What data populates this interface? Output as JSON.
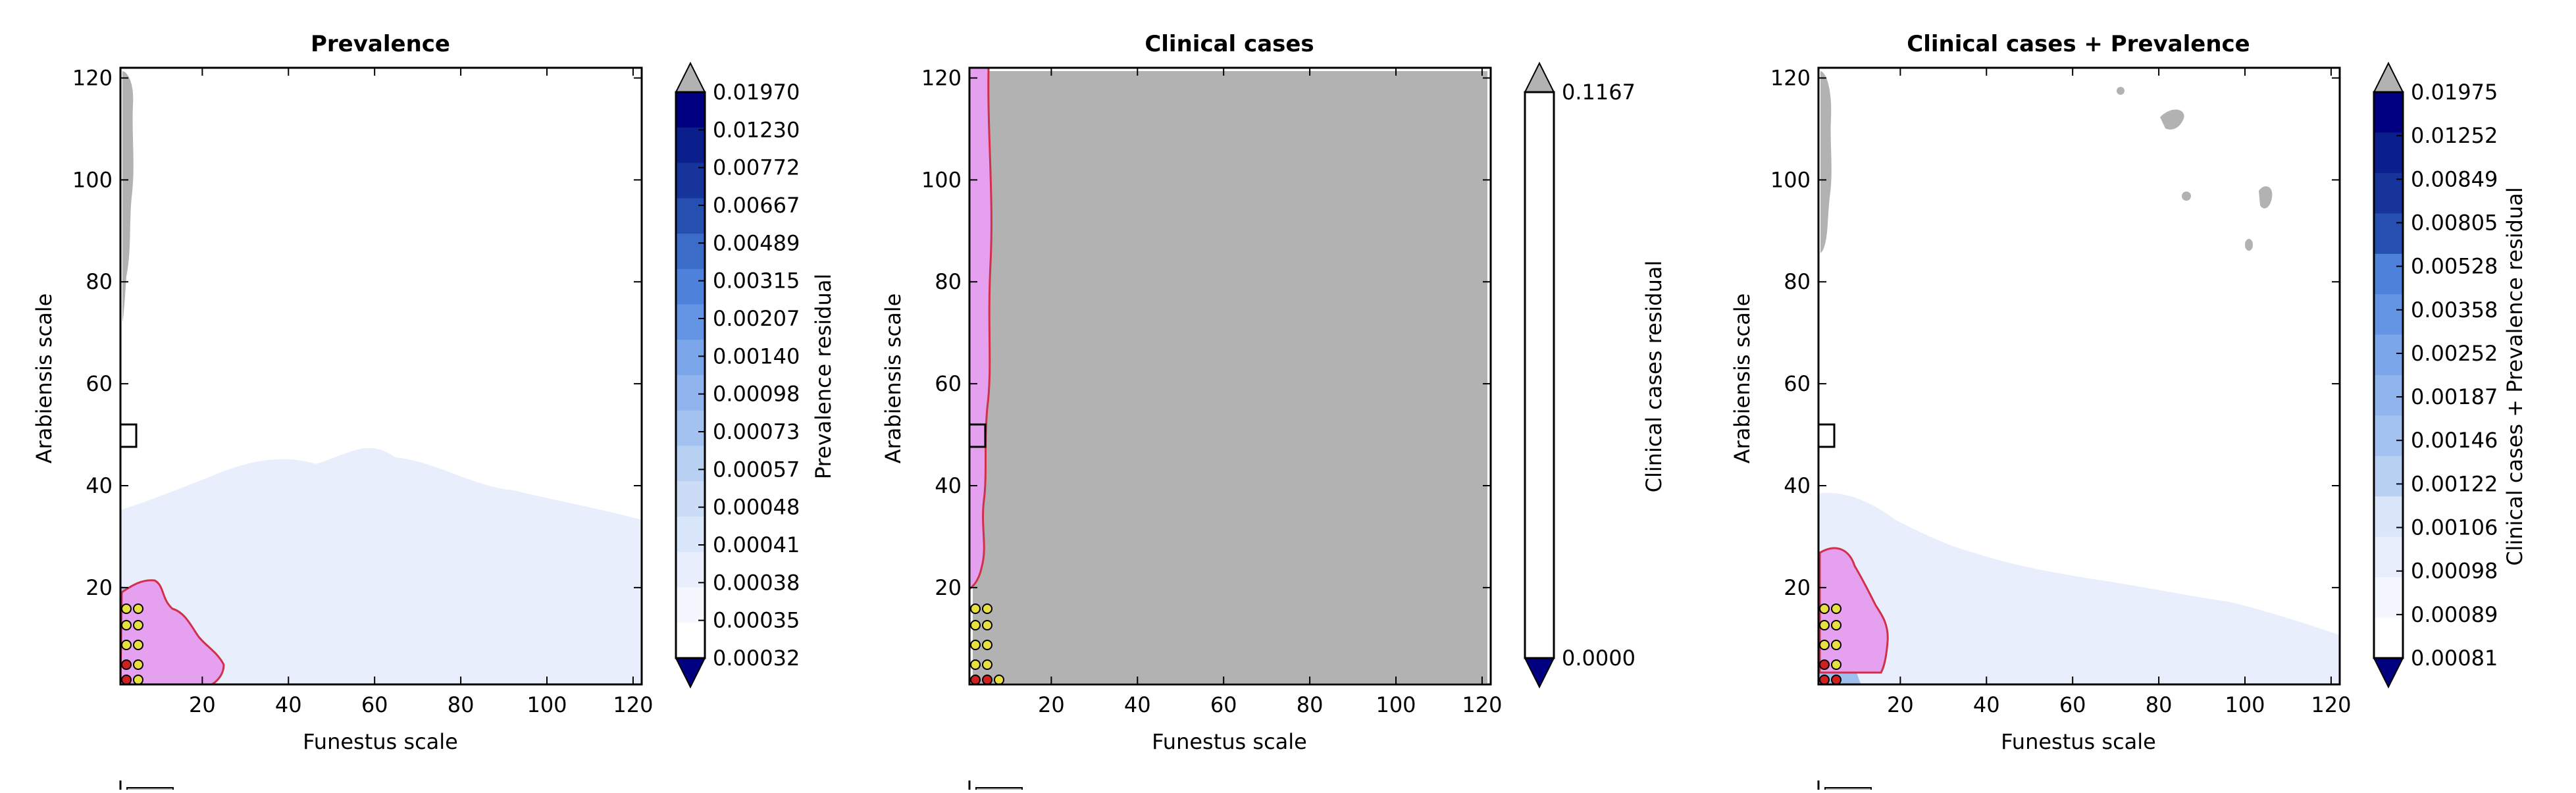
{
  "colors": {
    "background": "#ffffff",
    "axes_edge": "#000000",
    "contour_fill_light": "#e8eefb",
    "contour_fill_mid": "#9ec0ee",
    "grey_region": "#b2b2b2",
    "pink_region": "#e6a0f0",
    "pink_edge": "#d0304a",
    "point_yellow": "#e8e040",
    "point_red": "#d02020",
    "colorbar_scale": [
      "#000080",
      "#0a1e8c",
      "#16349a",
      "#2550b0",
      "#3a6cc8",
      "#4e82da",
      "#6494e4",
      "#7ca6ea",
      "#90b4ee",
      "#a4c2f0",
      "#b8d0f2",
      "#cadcf6",
      "#dae6f9",
      "#e8eefb",
      "#f4f7fd",
      "#ffffff"
    ],
    "colorbar_under": "#000080",
    "colorbar_over": "#b2b2b2"
  },
  "chart_data": [
    {
      "type": "heatmap",
      "title": "Prevalence",
      "xlabel": "Funestus scale",
      "ylabel": "Arabiensis scale",
      "xlim": [
        1,
        122
      ],
      "ylim": [
        1,
        122
      ],
      "xticks": [
        "20",
        "40",
        "60",
        "80",
        "100",
        "120"
      ],
      "yticks": [
        "20",
        "40",
        "60",
        "80",
        "100",
        "120"
      ],
      "colorbar": {
        "label": "Prevalence residual",
        "levels": [
          "0.01970",
          "0.01230",
          "0.00772",
          "0.00667",
          "0.00489",
          "0.00315",
          "0.00207",
          "0.00140",
          "0.00098",
          "0.00073",
          "0.00057",
          "0.00048",
          "0.00041",
          "0.00038",
          "0.00035",
          "0.00032"
        ]
      }
    },
    {
      "type": "heatmap",
      "title": "Clinical cases",
      "xlabel": "Funestus scale",
      "ylabel": "Arabiensis scale",
      "xlim": [
        1,
        122
      ],
      "ylim": [
        1,
        122
      ],
      "xticks": [
        "20",
        "40",
        "60",
        "80",
        "100",
        "120"
      ],
      "yticks": [
        "20",
        "40",
        "60",
        "80",
        "100",
        "120"
      ],
      "colorbar": {
        "label": "Clinical cases residual",
        "levels": [
          "0.1167",
          "0.0000"
        ]
      }
    },
    {
      "type": "heatmap",
      "title": "Clinical cases + Prevalence",
      "xlabel": "Funestus scale",
      "ylabel": "Arabiensis scale",
      "xlim": [
        1,
        122
      ],
      "ylim": [
        1,
        122
      ],
      "xticks": [
        "20",
        "40",
        "60",
        "80",
        "100",
        "120"
      ],
      "yticks": [
        "20",
        "40",
        "60",
        "80",
        "100",
        "120"
      ],
      "colorbar": {
        "label": "Clinical cases + Prevalence residual",
        "levels": [
          "0.01975",
          "0.01252",
          "0.00849",
          "0.00805",
          "0.00528",
          "0.00358",
          "0.00252",
          "0.00187",
          "0.00146",
          "0.00122",
          "0.00106",
          "0.00098",
          "0.00089",
          "0.00081"
        ]
      }
    }
  ]
}
